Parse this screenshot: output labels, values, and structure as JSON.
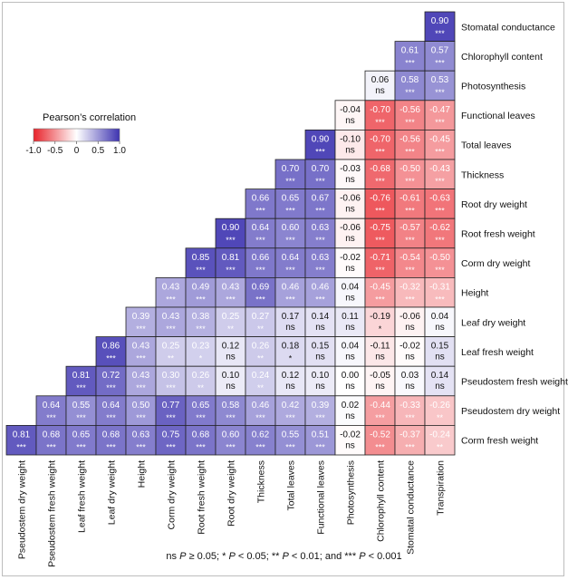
{
  "chart_data": {
    "type": "heatmap",
    "variables": [
      "Pseudostem dry weight",
      "Pseudostem fresh weight",
      "Leaf fresh weight",
      "Leaf dry weight",
      "Height",
      "Corm dry weight",
      "Root fresh weight",
      "Root dry weight",
      "Thickness",
      "Total leaves",
      "Functional leaves",
      "Photosynthesis",
      "Chlorophyll content",
      "Stomatal conductance",
      "Transpiration"
    ],
    "row_labels": [
      "Stomatal conductance",
      "Chlorophyll content",
      "Photosynthesis",
      "Functional leaves",
      "Total leaves",
      "Thickness",
      "Root dry weight",
      "Root fresh weight",
      "Corm dry weight",
      "Height",
      "Leaf dry weight",
      "Leaf fresh weight",
      "Pseudostem fresh weight",
      "Pseudostem dry weight",
      "Corm fresh weight"
    ],
    "column_labels": [
      "Pseudostem dry weight",
      "Pseudostem fresh weight",
      "Leaf fresh weight",
      "Leaf dry weight",
      "Height",
      "Corm dry weight",
      "Root fresh weight",
      "Root dry weight",
      "Thickness",
      "Total leaves",
      "Functional leaves",
      "Photosynthesis",
      "Chlorophyll content",
      "Stomatal conductance",
      "Transpiration"
    ],
    "values": [
      [
        null,
        null,
        null,
        null,
        null,
        null,
        null,
        null,
        null,
        null,
        null,
        null,
        null,
        null,
        0.9
      ],
      [
        null,
        null,
        null,
        null,
        null,
        null,
        null,
        null,
        null,
        null,
        null,
        null,
        null,
        0.61,
        0.57
      ],
      [
        null,
        null,
        null,
        null,
        null,
        null,
        null,
        null,
        null,
        null,
        null,
        null,
        0.06,
        0.58,
        0.53
      ],
      [
        null,
        null,
        null,
        null,
        null,
        null,
        null,
        null,
        null,
        null,
        null,
        -0.04,
        -0.7,
        -0.56,
        -0.47
      ],
      [
        null,
        null,
        null,
        null,
        null,
        null,
        null,
        null,
        null,
        null,
        0.9,
        -0.1,
        -0.7,
        -0.56,
        -0.45
      ],
      [
        null,
        null,
        null,
        null,
        null,
        null,
        null,
        null,
        null,
        0.7,
        0.7,
        -0.03,
        -0.68,
        -0.5,
        -0.43
      ],
      [
        null,
        null,
        null,
        null,
        null,
        null,
        null,
        null,
        0.66,
        0.65,
        0.67,
        -0.06,
        -0.76,
        -0.61,
        -0.63
      ],
      [
        null,
        null,
        null,
        null,
        null,
        null,
        null,
        0.9,
        0.64,
        0.6,
        0.63,
        -0.06,
        -0.75,
        -0.57,
        -0.62
      ],
      [
        null,
        null,
        null,
        null,
        null,
        null,
        0.85,
        0.81,
        0.66,
        0.64,
        0.63,
        -0.02,
        -0.71,
        -0.54,
        -0.5
      ],
      [
        null,
        null,
        null,
        null,
        null,
        0.43,
        0.49,
        0.43,
        0.69,
        0.46,
        0.46,
        0.04,
        -0.45,
        -0.32,
        -0.31
      ],
      [
        null,
        null,
        null,
        null,
        0.39,
        0.43,
        0.38,
        0.25,
        0.27,
        0.17,
        0.14,
        0.11,
        -0.19,
        -0.06,
        0.04
      ],
      [
        null,
        null,
        null,
        0.86,
        0.43,
        0.25,
        0.23,
        0.12,
        0.26,
        0.18,
        0.15,
        0.04,
        -0.11,
        -0.02,
        0.15
      ],
      [
        null,
        null,
        0.81,
        0.72,
        0.43,
        0.3,
        0.26,
        0.1,
        0.24,
        0.12,
        0.1,
        0.0,
        -0.05,
        0.03,
        0.14
      ],
      [
        null,
        0.64,
        0.55,
        0.64,
        0.5,
        0.77,
        0.65,
        0.58,
        0.46,
        0.42,
        0.39,
        0.02,
        -0.44,
        -0.33,
        -0.26
      ],
      [
        0.81,
        0.68,
        0.65,
        0.68,
        0.63,
        0.75,
        0.68,
        0.6,
        0.62,
        0.55,
        0.51,
        -0.02,
        -0.52,
        -0.37,
        -0.24
      ]
    ],
    "value_labels": [
      [
        null,
        null,
        null,
        null,
        null,
        null,
        null,
        null,
        null,
        null,
        null,
        null,
        null,
        null,
        "0.90"
      ],
      [
        null,
        null,
        null,
        null,
        null,
        null,
        null,
        null,
        null,
        null,
        null,
        null,
        null,
        "0.61",
        "0.57"
      ],
      [
        null,
        null,
        null,
        null,
        null,
        null,
        null,
        null,
        null,
        null,
        null,
        null,
        "0.06",
        "0.58",
        "0.53"
      ],
      [
        null,
        null,
        null,
        null,
        null,
        null,
        null,
        null,
        null,
        null,
        null,
        "-0.04",
        "-0.70",
        "-0.56",
        "-0.47"
      ],
      [
        null,
        null,
        null,
        null,
        null,
        null,
        null,
        null,
        null,
        null,
        "0.90",
        "-0.10",
        "-0.70",
        "-0.56",
        "-0.45"
      ],
      [
        null,
        null,
        null,
        null,
        null,
        null,
        null,
        null,
        null,
        "0.70",
        "0.70",
        "-0.03",
        "-0.68",
        "-0.50",
        "-0.43"
      ],
      [
        null,
        null,
        null,
        null,
        null,
        null,
        null,
        null,
        "0.66",
        "0.65",
        "0.67",
        "-0.06",
        "-0.76",
        "-0.61",
        "-0.63"
      ],
      [
        null,
        null,
        null,
        null,
        null,
        null,
        null,
        "0.90",
        "0.64",
        "0.60",
        "0.63",
        "-0.06",
        "-0.75",
        "-0.57",
        "-0.62"
      ],
      [
        null,
        null,
        null,
        null,
        null,
        null,
        "0.85",
        "0.81",
        "0.66",
        "0.64",
        "0.63",
        "-0.02",
        "-0.71",
        "-0.54",
        "-0.50"
      ],
      [
        null,
        null,
        null,
        null,
        null,
        "0.43",
        "0.49",
        "0.43",
        "0.69",
        "0.46",
        "0.46",
        "0.04",
        "-0.45",
        "-0.32",
        "-0.31"
      ],
      [
        null,
        null,
        null,
        null,
        "0.39",
        "0.43",
        "0.38",
        "0.25",
        "0.27",
        "0.17",
        "0.14",
        "0.11",
        "-0.19",
        "-0.06",
        "0.04"
      ],
      [
        null,
        null,
        null,
        "0.86",
        "0.43",
        "0.25",
        "0.23",
        "0.12",
        "0.26",
        "0.18",
        "0.15",
        "0.04",
        "-0.11",
        "-0.02",
        "0.15"
      ],
      [
        null,
        null,
        "0.81",
        "0.72",
        "0.43",
        "0.30",
        "0.26",
        "0.10",
        "0.24",
        "0.12",
        "0.10",
        "0.00",
        "-0.05",
        "0.03",
        "0.14"
      ],
      [
        null,
        "0.64",
        "0.55",
        "0.64",
        "0.50",
        "0.77",
        "0.65",
        "0.58",
        "0.46",
        "0.42",
        "0.39",
        "0.02",
        "-0.44",
        "-0.33",
        "-0.26"
      ],
      [
        "0.81",
        "0.68",
        "0.65",
        "0.68",
        "0.63",
        "0.75",
        "0.68",
        "0.60",
        "0.62",
        "0.55",
        "0.51",
        "-0.02",
        "-0.52",
        "-0.37",
        "-0.24"
      ]
    ],
    "significance": [
      [
        null,
        null,
        null,
        null,
        null,
        null,
        null,
        null,
        null,
        null,
        null,
        null,
        null,
        null,
        "***"
      ],
      [
        null,
        null,
        null,
        null,
        null,
        null,
        null,
        null,
        null,
        null,
        null,
        null,
        null,
        "***",
        "***"
      ],
      [
        null,
        null,
        null,
        null,
        null,
        null,
        null,
        null,
        null,
        null,
        null,
        null,
        "ns",
        "***",
        "***"
      ],
      [
        null,
        null,
        null,
        null,
        null,
        null,
        null,
        null,
        null,
        null,
        null,
        "ns",
        "***",
        "***",
        "***"
      ],
      [
        null,
        null,
        null,
        null,
        null,
        null,
        null,
        null,
        null,
        null,
        "***",
        "ns",
        "***",
        "***",
        "***"
      ],
      [
        null,
        null,
        null,
        null,
        null,
        null,
        null,
        null,
        null,
        "***",
        "***",
        "ns",
        "***",
        "***",
        "***"
      ],
      [
        null,
        null,
        null,
        null,
        null,
        null,
        null,
        null,
        "***",
        "***",
        "***",
        "ns",
        "***",
        "***",
        "***"
      ],
      [
        null,
        null,
        null,
        null,
        null,
        null,
        null,
        "***",
        "***",
        "***",
        "***",
        "ns",
        "***",
        "***",
        "***"
      ],
      [
        null,
        null,
        null,
        null,
        null,
        null,
        "***",
        "***",
        "***",
        "***",
        "***",
        "ns",
        "***",
        "***",
        "***"
      ],
      [
        null,
        null,
        null,
        null,
        null,
        "***",
        "***",
        "***",
        "***",
        "***",
        "***",
        "ns",
        "***",
        "***",
        "***"
      ],
      [
        null,
        null,
        null,
        null,
        "***",
        "***",
        "***",
        "**",
        "**",
        "ns",
        "ns",
        "ns",
        "*",
        "ns",
        "ns"
      ],
      [
        null,
        null,
        null,
        "***",
        "***",
        "**",
        "*",
        "ns",
        "**",
        "*",
        "ns",
        "ns",
        "ns",
        "ns",
        "ns"
      ],
      [
        null,
        null,
        "***",
        "***",
        "***",
        "***",
        "**",
        "ns",
        "**",
        "ns",
        "ns",
        "ns",
        "ns",
        "ns",
        "ns"
      ],
      [
        null,
        "***",
        "***",
        "***",
        "***",
        "***",
        "***",
        "***",
        "***",
        "***",
        "***",
        "ns",
        "***",
        "***",
        "**"
      ],
      [
        "***",
        "***",
        "***",
        "***",
        "***",
        "***",
        "***",
        "***",
        "***",
        "***",
        "***",
        "ns",
        "***",
        "***",
        "**"
      ]
    ],
    "colorscale": {
      "min": -1.0,
      "max": 1.0,
      "negative_color": "#e8232a",
      "zero_color": "#ffffff",
      "positive_color": "#3d33b0"
    },
    "legend": {
      "title": "Pearson’s correlation",
      "ticks": [
        "-1.0",
        "-0.5",
        "0",
        "0.5",
        "1.0"
      ],
      "position": "top-left"
    }
  },
  "footnote": {
    "ns_text": "ns ",
    "p1": "P",
    "t1": " ≥ 0.05; * ",
    "p2": "P",
    "t2": " < 0.05; ** ",
    "p3": "P",
    "t3": " < 0.01; and *** ",
    "p4": "P",
    "t4": " < 0.001"
  }
}
